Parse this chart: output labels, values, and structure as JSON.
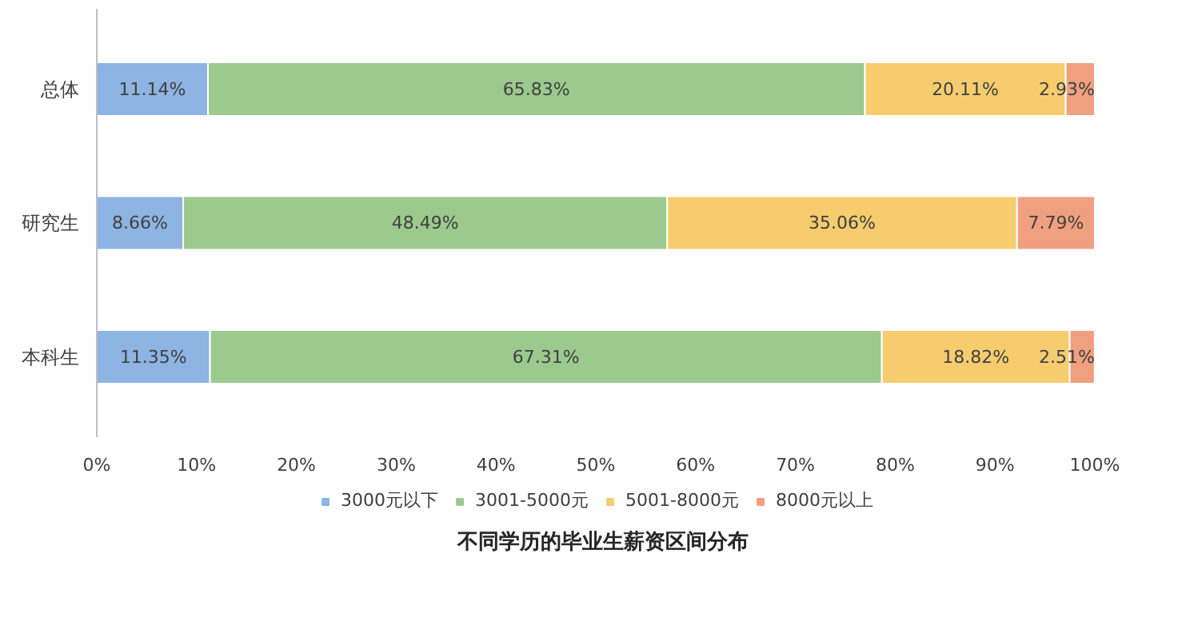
{
  "chart_data": {
    "type": "bar",
    "orientation": "horizontal",
    "stacked": true,
    "title": "不同学历的毕业生薪资区间分布",
    "categories": [
      "总体",
      "研究生",
      "本科生"
    ],
    "series": [
      {
        "name": "3000元以下",
        "color": "#8db4e2",
        "values": [
          11.14,
          8.66,
          11.35
        ],
        "value_labels": [
          "11.14%",
          "8.66%",
          "11.35%"
        ]
      },
      {
        "name": "3001-5000元",
        "color": "#9bc98e",
        "values": [
          65.83,
          48.49,
          67.31
        ],
        "value_labels": [
          "65.83%",
          "48.49%",
          "67.31%"
        ]
      },
      {
        "name": "5001-8000元",
        "color": "#f6cc6f",
        "values": [
          20.11,
          35.06,
          18.82
        ],
        "value_labels": [
          "20.11%",
          "35.06%",
          "18.82%"
        ]
      },
      {
        "name": "8000元以上",
        "color": "#f0a07e",
        "values": [
          2.93,
          7.79,
          2.51
        ],
        "value_labels": [
          "2.93%",
          "7.79%",
          "2.51%"
        ]
      }
    ],
    "xlim": [
      0,
      100
    ],
    "xticks": [
      {
        "value": 0,
        "label": "0%"
      },
      {
        "value": 10,
        "label": "10%"
      },
      {
        "value": 20,
        "label": "20%"
      },
      {
        "value": 30,
        "label": "30%"
      },
      {
        "value": 40,
        "label": "40%"
      },
      {
        "value": 50,
        "label": "50%"
      },
      {
        "value": 60,
        "label": "60%"
      },
      {
        "value": 70,
        "label": "70%"
      },
      {
        "value": 80,
        "label": "80%"
      },
      {
        "value": 90,
        "label": "90%"
      },
      {
        "value": 100,
        "label": "100%"
      }
    ],
    "grid": false,
    "legend": "bottom"
  }
}
